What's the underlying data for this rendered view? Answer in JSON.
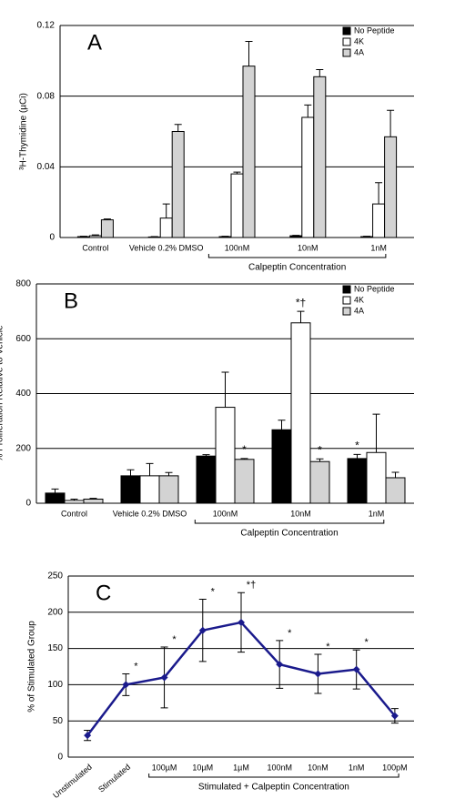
{
  "chart_data": [
    {
      "type": "bar",
      "title": "A",
      "ylabel": "³H-Thymidine (µCi)",
      "categories": [
        "Control",
        "Vehicle 0.2% DMSO",
        "100nM",
        "10nM",
        "1nM"
      ],
      "series": [
        {
          "name": "No Peptide",
          "color": "#000000",
          "values": [
            0.0005,
            0.0003,
            0.0005,
            0.001,
            0.0005
          ],
          "errors": [
            0.0002,
            0.0002,
            0.0002,
            0.0002,
            0.0002
          ]
        },
        {
          "name": "4K",
          "color": "#ffffff",
          "values": [
            0.001,
            0.011,
            0.036,
            0.068,
            0.019
          ],
          "errors": [
            0.0005,
            0.008,
            0.001,
            0.007,
            0.012
          ]
        },
        {
          "name": "4A",
          "color": "#d3d3d3",
          "values": [
            0.01,
            0.06,
            0.097,
            0.091,
            0.057
          ],
          "errors": [
            0.0005,
            0.004,
            0.014,
            0.004,
            0.015
          ]
        }
      ],
      "ylim": [
        0,
        0.12
      ],
      "yticks": [
        0,
        0.04,
        0.08,
        0.12
      ],
      "grid": true,
      "legend": "upper right",
      "x_group_label": "Calpeptin Concentration"
    },
    {
      "type": "bar",
      "title": "B",
      "ylabel": "% Proliferation Relative to Vehicle",
      "categories": [
        "Control",
        "Vehicle 0.2% DMSO",
        "100nM",
        "10nM",
        "1nM"
      ],
      "series": [
        {
          "name": "No Peptide",
          "color": "#000000",
          "values": [
            37,
            100,
            172,
            268,
            163
          ],
          "errors": [
            15,
            22,
            5,
            35,
            15
          ],
          "annotations": [
            null,
            null,
            null,
            null,
            "*"
          ]
        },
        {
          "name": "4K",
          "color": "#ffffff",
          "values": [
            10,
            100,
            350,
            658,
            185
          ],
          "errors": [
            5,
            45,
            128,
            42,
            140
          ],
          "annotations": [
            null,
            null,
            null,
            "*†",
            null
          ]
        },
        {
          "name": "4A",
          "color": "#d3d3d3",
          "values": [
            15,
            100,
            160,
            152,
            93
          ],
          "errors": [
            3,
            12,
            3,
            10,
            20
          ],
          "annotations": [
            null,
            null,
            "*",
            "*",
            null
          ]
        }
      ],
      "ylim": [
        0,
        800
      ],
      "yticks": [
        0,
        200,
        400,
        600,
        800
      ],
      "grid": true,
      "legend": "upper right",
      "x_group_label": "Calpeptin Concentration"
    },
    {
      "type": "line",
      "title": "C",
      "ylabel": "% of Stimulated Group",
      "categories": [
        "Unstimulated",
        "Stimulated",
        "100µM",
        "10µM",
        "1µM",
        "100nM",
        "10nM",
        "1nM",
        "100pM"
      ],
      "series": [
        {
          "color": "#1a1a8c",
          "values": [
            30,
            100,
            110,
            175,
            186,
            128,
            115,
            121,
            57
          ],
          "errors": [
            7,
            15,
            42,
            43,
            41,
            33,
            27,
            27,
            10
          ],
          "annotations": [
            null,
            "*",
            "*",
            "*",
            "*†",
            "*",
            "*",
            "*",
            null
          ]
        }
      ],
      "ylim": [
        0,
        250
      ],
      "yticks": [
        0,
        50,
        100,
        150,
        200,
        250
      ],
      "grid": true,
      "x_group_label": "Stimulated + Calpeptin Concentration"
    }
  ]
}
